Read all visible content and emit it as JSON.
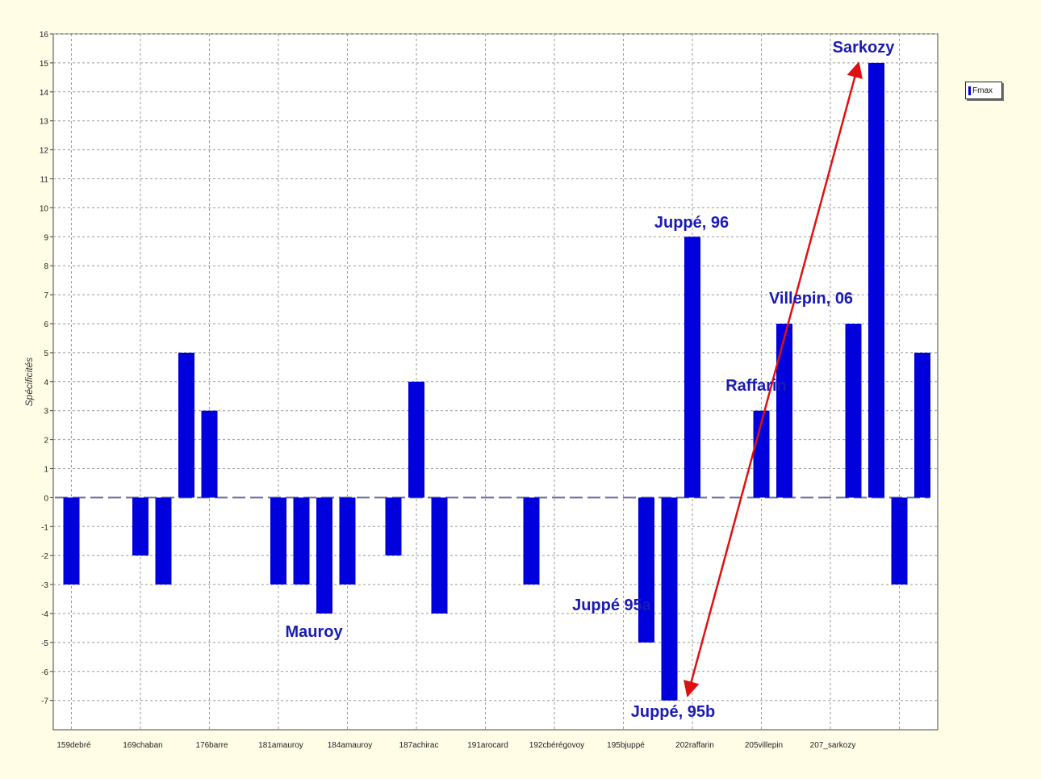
{
  "chart_data": {
    "type": "bar",
    "title": "",
    "xlabel": "",
    "ylabel": "Spécificités",
    "ylim": [
      -8,
      16
    ],
    "y_ticks": [
      -7,
      -6,
      -5,
      -4,
      -3,
      -2,
      -1,
      0,
      1,
      2,
      3,
      4,
      5,
      6,
      7,
      8,
      9,
      10,
      11,
      12,
      13,
      14,
      15,
      16
    ],
    "grid": true,
    "legend": {
      "position": "right",
      "entries": [
        "Fmax"
      ]
    },
    "bar_color": "#0000dd",
    "annotation_color": "#1a1ab5",
    "arrow_color": "#e01010",
    "category_labels": [
      "159debré",
      "169chaban",
      "176barre",
      "181amauroy",
      "184amauroy",
      "187achirac",
      "191arocard",
      "192cbérégovoy",
      "195bjuppé",
      "202raffarin",
      "205villepin",
      "207_sarkozy"
    ],
    "series": [
      {
        "values": [
          -3,
          0,
          0,
          -2,
          -3,
          5,
          3,
          0,
          0,
          -3,
          -3,
          -4,
          -3,
          0,
          -2,
          4,
          -4,
          0,
          0,
          0,
          -3,
          0,
          0,
          0,
          0,
          -5,
          -7,
          9,
          0,
          0,
          3,
          6,
          0,
          0,
          6,
          15,
          -3,
          5
        ]
      }
    ],
    "annotations": [
      {
        "text": "Sarkozy"
      },
      {
        "text": "Juppé, 96"
      },
      {
        "text": "Villepin, 06"
      },
      {
        "text": "Raffarin"
      },
      {
        "text": "Juppé 95a"
      },
      {
        "text": "Mauroy"
      },
      {
        "text": "Juppé, 95b"
      }
    ]
  }
}
